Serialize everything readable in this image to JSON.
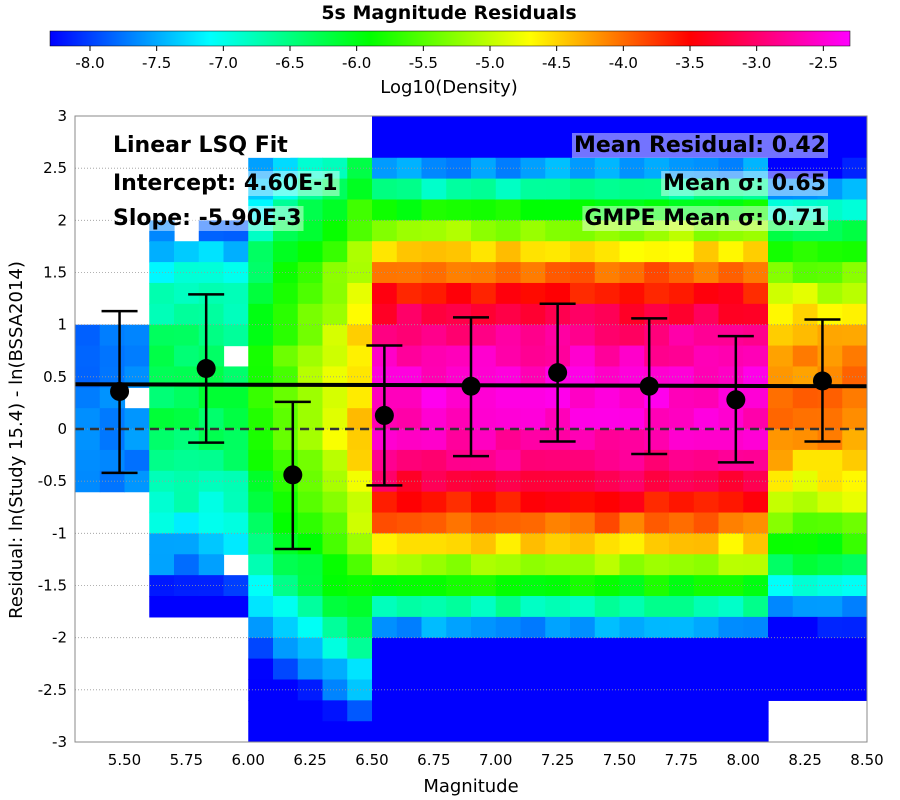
{
  "chart_data": {
    "type": "heatmap",
    "title": "5s Magnitude Residuals",
    "colorbar": {
      "label": "Log10(Density)",
      "min": -8.3,
      "max": -2.3,
      "ticks": [
        "-8.0",
        "-7.5",
        "-7.0",
        "-6.5",
        "-6.0",
        "-5.5",
        "-5.0",
        "-4.5",
        "-4.0",
        "-3.5",
        "-3.0",
        "-2.5"
      ],
      "tick_values": [
        -8.0,
        -7.5,
        -7.0,
        -6.5,
        -6.0,
        -5.5,
        -5.0,
        -4.5,
        -4.0,
        -3.5,
        -3.0,
        -2.5
      ],
      "colormap": [
        "#0000ff",
        "#00ffff",
        "#00ff00",
        "#ffff00",
        "#ff0000",
        "#ff00ff"
      ]
    },
    "xlabel": "Magnitude",
    "ylabel": "Residual: ln(Study 15.4) - ln(BSSA2014)",
    "xlim": [
      5.3,
      8.5
    ],
    "ylim": [
      -3,
      3
    ],
    "xticks": [
      "5.50",
      "5.75",
      "6.00",
      "6.25",
      "6.50",
      "6.75",
      "7.00",
      "7.25",
      "7.50",
      "7.75",
      "8.00",
      "8.25",
      "8.50"
    ],
    "xtick_values": [
      5.5,
      5.75,
      6.0,
      6.25,
      6.5,
      6.75,
      7.0,
      7.25,
      7.5,
      7.75,
      8.0,
      8.25,
      8.5
    ],
    "yticks": [
      "-3",
      "-2.5",
      "-2",
      "-1.5",
      "-1",
      "-0.5",
      "0",
      "0.5",
      "1",
      "1.5",
      "2",
      "2.5",
      "3"
    ],
    "ytick_values": [
      -3,
      -2.5,
      -2,
      -1.5,
      -1,
      -0.5,
      0,
      0.5,
      1,
      1.5,
      2,
      2.5,
      3
    ],
    "horizontal_gridlines": true,
    "binned_means": [
      {
        "x": 5.48,
        "y": 0.36,
        "upper": 1.13,
        "lower": -0.42
      },
      {
        "x": 5.83,
        "y": 0.58,
        "upper": 1.29,
        "lower": -0.13
      },
      {
        "x": 6.18,
        "y": -0.44,
        "upper": 0.26,
        "lower": -1.15
      },
      {
        "x": 6.55,
        "y": 0.13,
        "upper": 0.8,
        "lower": -0.54
      },
      {
        "x": 6.9,
        "y": 0.41,
        "upper": 1.07,
        "lower": -0.26
      },
      {
        "x": 7.25,
        "y": 0.54,
        "upper": 1.2,
        "lower": -0.12
      },
      {
        "x": 7.62,
        "y": 0.41,
        "upper": 1.06,
        "lower": -0.24
      },
      {
        "x": 7.97,
        "y": 0.28,
        "upper": 0.89,
        "lower": -0.32
      },
      {
        "x": 8.32,
        "y": 0.46,
        "upper": 1.05,
        "lower": -0.12
      }
    ],
    "fit_line": {
      "intercept": 0.46,
      "slope": -0.0059
    },
    "reference_line_y": 0,
    "annotations": {
      "fit_title": "Linear LSQ Fit",
      "intercept": "Intercept: 4.60E-1",
      "slope": "Slope: -5.90E-3",
      "mean_residual": "Mean Residual: 0.42",
      "mean_sigma": "Mean σ: 0.65",
      "gmpe_sigma": "GMPE Mean σ: 0.71"
    }
  }
}
